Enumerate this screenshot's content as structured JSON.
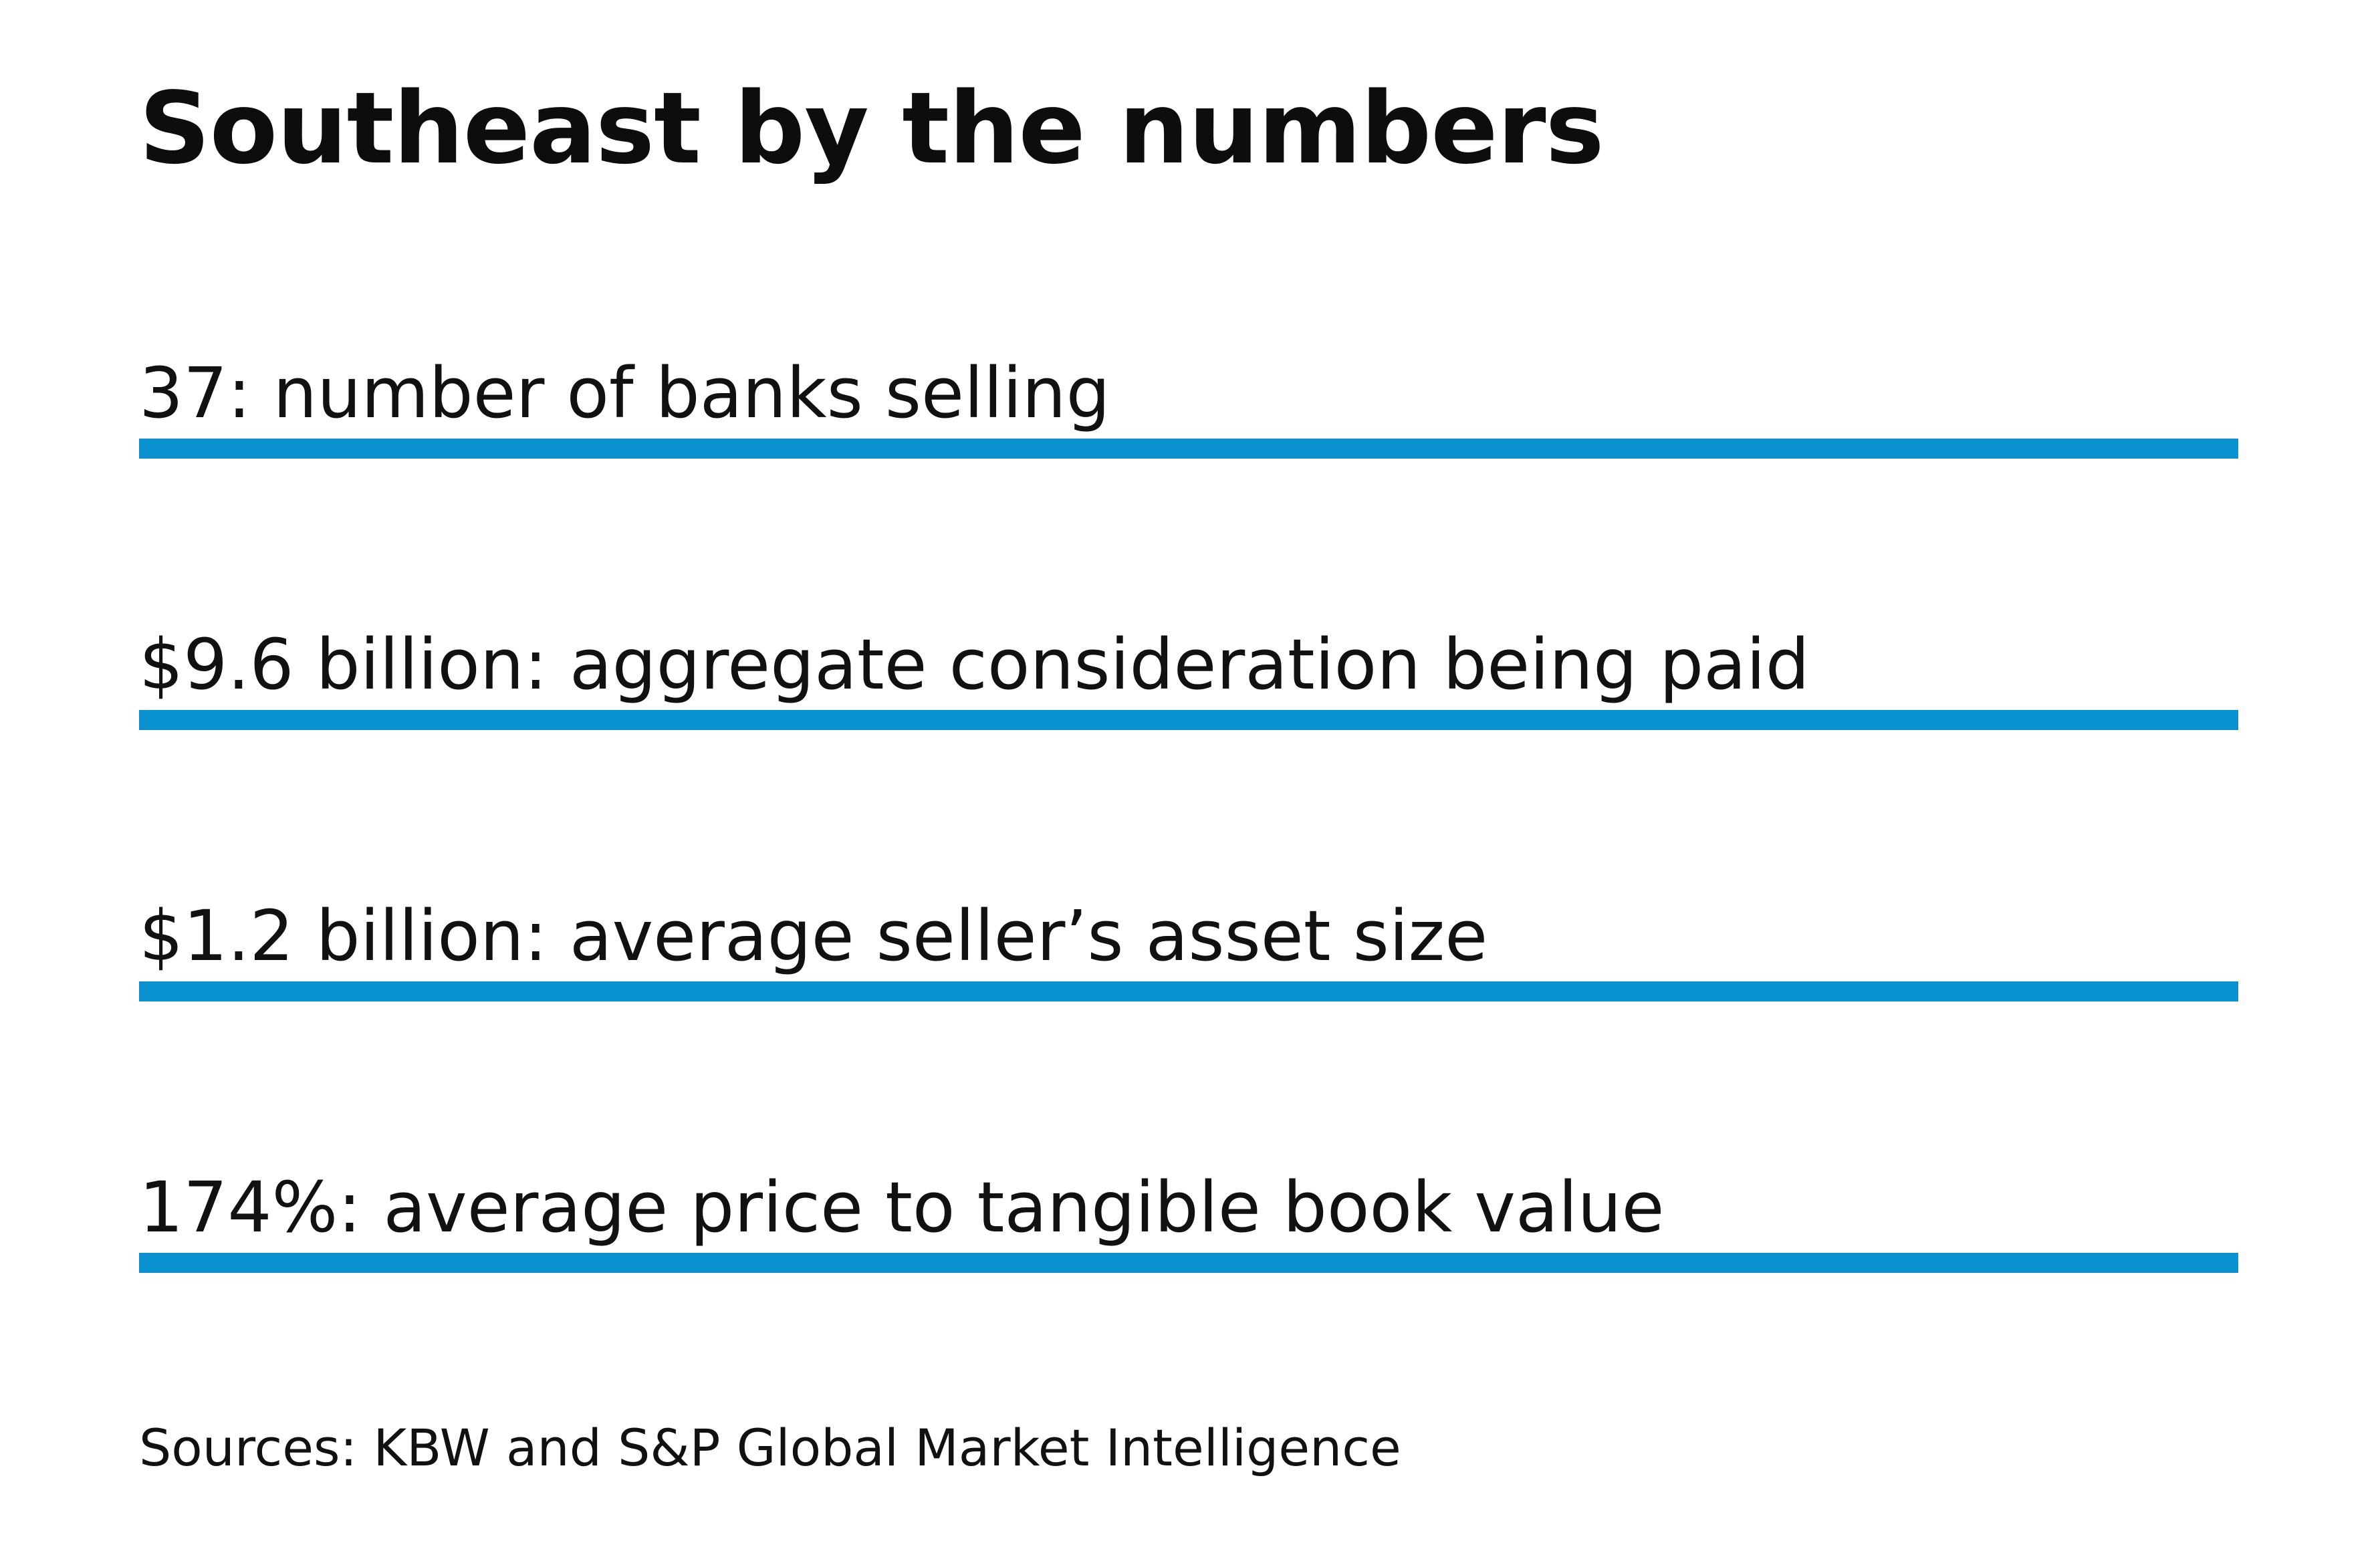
{
  "title": "Southeast by the numbers",
  "stats": [
    {
      "text": "37: number of banks selling"
    },
    {
      "text": "$9.6 billion: aggregate consideration being paid"
    },
    {
      "text": "$1.2 billion: average seller’s asset size"
    },
    {
      "text": "174%: average price to tangible book value"
    }
  ],
  "source": "Sources: KBW and S&P Global Market Intelligence",
  "colors": {
    "accent_bar": "#0a91d0",
    "text": "#111111",
    "background": "#ffffff"
  }
}
